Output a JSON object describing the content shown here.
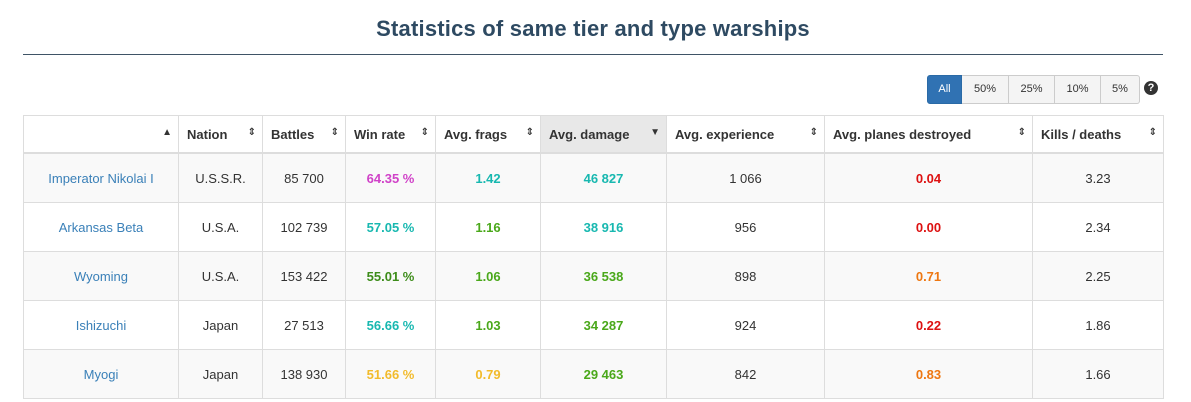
{
  "page": {
    "title": "Statistics of same tier and type warships"
  },
  "filters": [
    "All",
    "50%",
    "25%",
    "10%",
    "5%"
  ],
  "help_icon": "question-circle-icon",
  "columns": [
    "",
    "Nation",
    "Battles",
    "Win rate",
    "Avg. frags",
    "Avg. damage",
    "Avg. experience",
    "Avg. planes destroyed",
    "Kills / deaths"
  ],
  "sorted_column": "Avg. damage",
  "rows": [
    {
      "ship": "Imperator Nikolai I",
      "nation": "U.S.S.R.",
      "battles": "85 700",
      "win_rate": "64.35 %",
      "frags": "1.42",
      "damage": "46 827",
      "experience": "1 066",
      "planes": "0.04",
      "kd": "3.23"
    },
    {
      "ship": "Arkansas Beta",
      "nation": "U.S.A.",
      "battles": "102 739",
      "win_rate": "57.05 %",
      "frags": "1.16",
      "damage": "38 916",
      "experience": "956",
      "planes": "0.00",
      "kd": "2.34"
    },
    {
      "ship": "Wyoming",
      "nation": "U.S.A.",
      "battles": "153 422",
      "win_rate": "55.01 %",
      "frags": "1.06",
      "damage": "36 538",
      "experience": "898",
      "planes": "0.71",
      "kd": "2.25"
    },
    {
      "ship": "Ishizuchi",
      "nation": "Japan",
      "battles": "27 513",
      "win_rate": "56.66 %",
      "frags": "1.03",
      "damage": "34 287",
      "experience": "924",
      "planes": "0.22",
      "kd": "1.86"
    },
    {
      "ship": "Myogi",
      "nation": "Japan",
      "battles": "138 930",
      "win_rate": "51.66 %",
      "frags": "0.79",
      "damage": "29 463",
      "experience": "842",
      "planes": "0.83",
      "kd": "1.66"
    }
  ],
  "colors": {
    "win_rate": [
      "#d042c8",
      "#18b8b0",
      "#3d8c1a",
      "#18b8b0",
      "#f2bb2b"
    ],
    "frags": [
      "#18b8b0",
      "#4aa81a",
      "#4aa81a",
      "#4aa81a",
      "#f2bb2b"
    ],
    "damage": [
      "#18b8b0",
      "#18b8b0",
      "#4aa81a",
      "#4aa81a",
      "#4aa81a"
    ],
    "planes": [
      "#dd1111",
      "#dd1111",
      "#ee7711",
      "#dd1111",
      "#ee7711"
    ]
  }
}
